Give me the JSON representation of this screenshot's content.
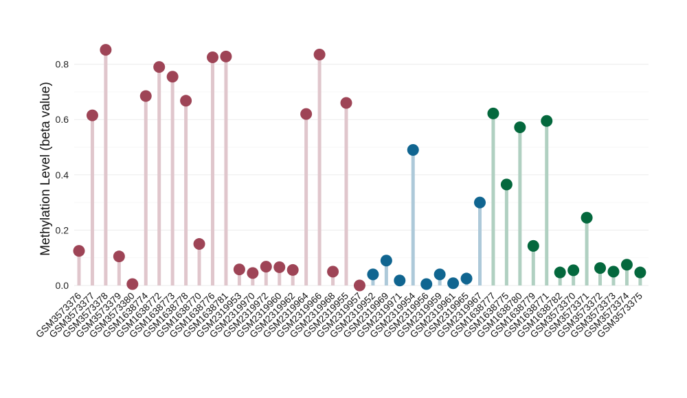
{
  "chart_data": {
    "type": "lollipop",
    "ylabel": "Methylation Level (beta value)",
    "ylim": [
      0,
      0.85
    ],
    "yticks": [
      0.0,
      0.2,
      0.4,
      0.6,
      0.8
    ],
    "ytick_labels": [
      "0.0",
      "0.2",
      "0.4",
      "0.6",
      "0.8"
    ],
    "grid": true,
    "legend": "none",
    "colors": {
      "group1_point": "#9e4456",
      "group1_stem": "#e0c6cc",
      "group2_point": "#106590",
      "group2_stem": "#adc9d9",
      "group3_point": "#04683d",
      "group3_stem": "#b0d0c1"
    },
    "samples": [
      {
        "label": "GSM3573376",
        "value": 0.125,
        "group": 1
      },
      {
        "label": "GSM3573377",
        "value": 0.615,
        "group": 1
      },
      {
        "label": "GSM3573378",
        "value": 0.852,
        "group": 1
      },
      {
        "label": "GSM3573379",
        "value": 0.105,
        "group": 1
      },
      {
        "label": "GSM3573380",
        "value": 0.005,
        "group": 1
      },
      {
        "label": "GSM1638774",
        "value": 0.685,
        "group": 1
      },
      {
        "label": "GSM1638772",
        "value": 0.79,
        "group": 1
      },
      {
        "label": "GSM1638773",
        "value": 0.755,
        "group": 1
      },
      {
        "label": "GSM1638778",
        "value": 0.668,
        "group": 1
      },
      {
        "label": "GSM1638770",
        "value": 0.15,
        "group": 1
      },
      {
        "label": "GSM1638776",
        "value": 0.825,
        "group": 1
      },
      {
        "label": "GSM1638781",
        "value": 0.828,
        "group": 1
      },
      {
        "label": "GSM2319953",
        "value": 0.058,
        "group": 1
      },
      {
        "label": "GSM2319970",
        "value": 0.045,
        "group": 1
      },
      {
        "label": "GSM2319972",
        "value": 0.068,
        "group": 1
      },
      {
        "label": "GSM2319960",
        "value": 0.066,
        "group": 1
      },
      {
        "label": "GSM2319962",
        "value": 0.056,
        "group": 1
      },
      {
        "label": "GSM2319964",
        "value": 0.62,
        "group": 1
      },
      {
        "label": "GSM2319966",
        "value": 0.835,
        "group": 1
      },
      {
        "label": "GSM2319968",
        "value": 0.05,
        "group": 1
      },
      {
        "label": "GSM2319955",
        "value": 0.66,
        "group": 1
      },
      {
        "label": "GSM2319957",
        "value": 0.0,
        "group": 1
      },
      {
        "label": "GSM2319952",
        "value": 0.04,
        "group": 2
      },
      {
        "label": "GSM2319969",
        "value": 0.09,
        "group": 2
      },
      {
        "label": "GSM2319971",
        "value": 0.018,
        "group": 2
      },
      {
        "label": "GSM2319954",
        "value": 0.49,
        "group": 2
      },
      {
        "label": "GSM2319956",
        "value": 0.005,
        "group": 2
      },
      {
        "label": "GSM2319959",
        "value": 0.04,
        "group": 2
      },
      {
        "label": "GSM2319961",
        "value": 0.008,
        "group": 2
      },
      {
        "label": "GSM2319965",
        "value": 0.025,
        "group": 2
      },
      {
        "label": "GSM2319967",
        "value": 0.3,
        "group": 2
      },
      {
        "label": "GSM1638777",
        "value": 0.622,
        "group": 3
      },
      {
        "label": "GSM1638775",
        "value": 0.365,
        "group": 3
      },
      {
        "label": "GSM1638780",
        "value": 0.572,
        "group": 3
      },
      {
        "label": "GSM1638779",
        "value": 0.143,
        "group": 3
      },
      {
        "label": "GSM1638771",
        "value": 0.595,
        "group": 3
      },
      {
        "label": "GSM1638782",
        "value": 0.047,
        "group": 3
      },
      {
        "label": "GSM3573370",
        "value": 0.055,
        "group": 3
      },
      {
        "label": "GSM3573371",
        "value": 0.245,
        "group": 3
      },
      {
        "label": "GSM3573372",
        "value": 0.063,
        "group": 3
      },
      {
        "label": "GSM3573373",
        "value": 0.05,
        "group": 3
      },
      {
        "label": "GSM3573374",
        "value": 0.075,
        "group": 3
      },
      {
        "label": "GSM3573375",
        "value": 0.047,
        "group": 3
      }
    ]
  }
}
